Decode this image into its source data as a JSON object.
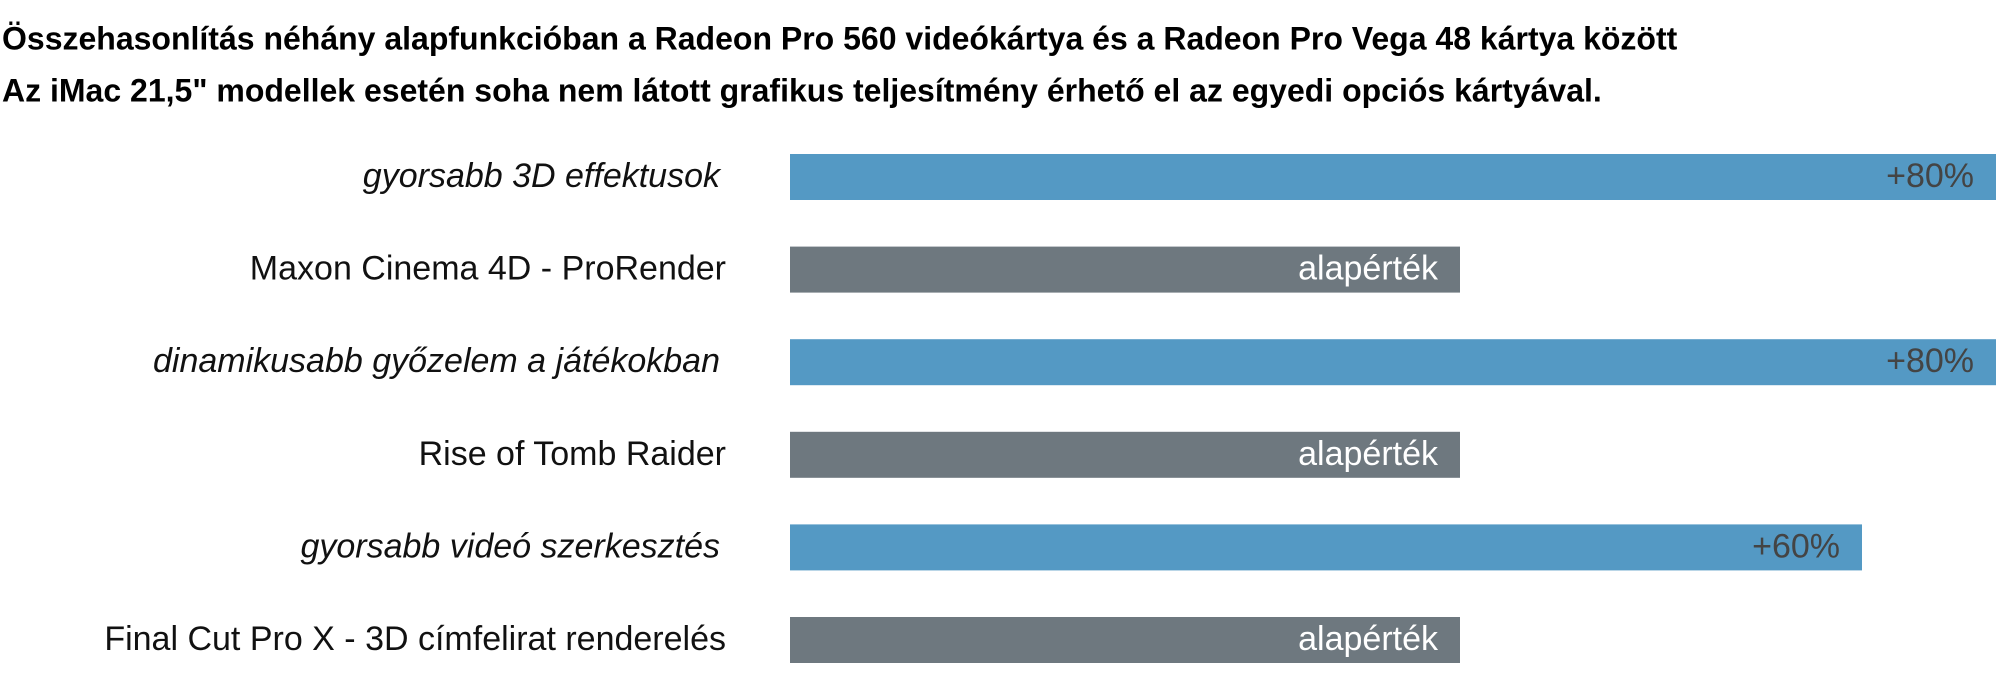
{
  "chart_data": {
    "type": "bar",
    "orientation": "horizontal",
    "title": "Összehasonlítás néhány alapfunkcióban a Radeon Pro 560 videókártya és a Radeon Pro Vega 48 kártya között",
    "subtitle": "Az iMac 21,5\" modellek esetén soha nem látott grafikus teljesítmény érhető el az egyedi opciós kártyával.",
    "categories": [
      "gyorsabb 3D effektusok",
      "Maxon Cinema 4D - ProRender",
      "dinamikusabb győzelem a játékokban",
      "Rise of Tomb Raider",
      "gyorsabb videó szerkesztés",
      "Final Cut Pro X - 3D címfelirat renderelés"
    ],
    "values": [
      80,
      0,
      80,
      0,
      60,
      0
    ],
    "value_labels": [
      "+80%",
      "alapérték",
      "+80%",
      "alapérték",
      "+60%",
      "alapérték"
    ],
    "colors": [
      "#5499c4",
      "#6e787f",
      "#5499c4",
      "#6e787f",
      "#5499c4",
      "#6e787f"
    ],
    "xlim": [
      -100,
      80
    ]
  }
}
